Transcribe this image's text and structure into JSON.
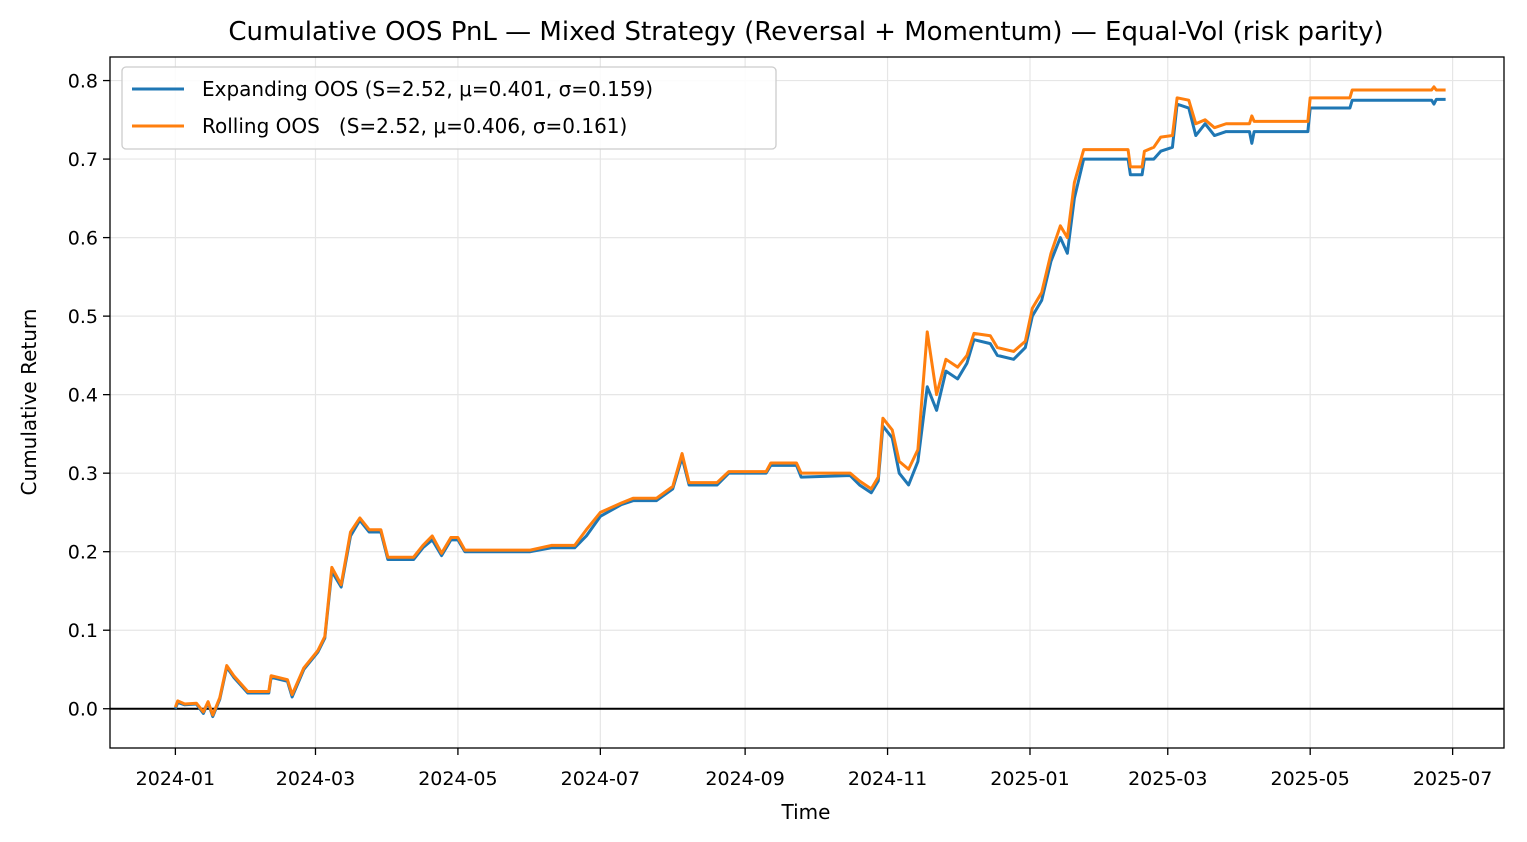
{
  "chart_data": {
    "type": "line",
    "title": "Cumulative OOS PnL — Mixed Strategy (Reversal + Momentum) — Equal-Vol (risk parity)",
    "xlabel": "Time",
    "ylabel": "Cumulative Return",
    "xlim": [
      "2023-12-04",
      "2025-07-23"
    ],
    "ylim": [
      -0.05,
      0.83
    ],
    "x_ticks": [
      "2024-01",
      "2024-03",
      "2024-05",
      "2024-07",
      "2024-09",
      "2024-11",
      "2025-01",
      "2025-03",
      "2025-05",
      "2025-07"
    ],
    "y_ticks": [
      "0.0",
      "0.1",
      "0.2",
      "0.3",
      "0.4",
      "0.5",
      "0.6",
      "0.7",
      "0.8"
    ],
    "y_tick_values": [
      0.0,
      0.1,
      0.2,
      0.3,
      0.4,
      0.5,
      0.6,
      0.7,
      0.8
    ],
    "grid": true,
    "zero_line": true,
    "legend_position": "top-left",
    "series": [
      {
        "name": "Expanding OOS (S=2.52, μ=0.401, σ=0.159)",
        "color": "#1f77b4",
        "points": [
          [
            "2024-01-01",
            0.0
          ],
          [
            "2024-01-02",
            0.008
          ],
          [
            "2024-01-05",
            0.005
          ],
          [
            "2024-01-10",
            0.006
          ],
          [
            "2024-01-13",
            -0.006
          ],
          [
            "2024-01-15",
            0.008
          ],
          [
            "2024-01-17",
            -0.01
          ],
          [
            "2024-01-20",
            0.012
          ],
          [
            "2024-01-23",
            0.053
          ],
          [
            "2024-01-26",
            0.04
          ],
          [
            "2024-01-29",
            0.03
          ],
          [
            "2024-02-01",
            0.02
          ],
          [
            "2024-02-10",
            0.02
          ],
          [
            "2024-02-11",
            0.04
          ],
          [
            "2024-02-18",
            0.035
          ],
          [
            "2024-02-20",
            0.015
          ],
          [
            "2024-02-25",
            0.05
          ],
          [
            "2024-03-02",
            0.072
          ],
          [
            "2024-03-05",
            0.09
          ],
          [
            "2024-03-08",
            0.175
          ],
          [
            "2024-03-12",
            0.155
          ],
          [
            "2024-03-16",
            0.22
          ],
          [
            "2024-03-20",
            0.24
          ],
          [
            "2024-03-24",
            0.225
          ],
          [
            "2024-03-29",
            0.225
          ],
          [
            "2024-04-01",
            0.19
          ],
          [
            "2024-04-12",
            0.19
          ],
          [
            "2024-04-16",
            0.205
          ],
          [
            "2024-04-20",
            0.215
          ],
          [
            "2024-04-24",
            0.195
          ],
          [
            "2024-04-28",
            0.215
          ],
          [
            "2024-05-01",
            0.215
          ],
          [
            "2024-05-04",
            0.2
          ],
          [
            "2024-05-20",
            0.2
          ],
          [
            "2024-06-01",
            0.2
          ],
          [
            "2024-06-10",
            0.205
          ],
          [
            "2024-06-20",
            0.205
          ],
          [
            "2024-06-25",
            0.22
          ],
          [
            "2024-07-01",
            0.245
          ],
          [
            "2024-07-10",
            0.26
          ],
          [
            "2024-07-15",
            0.265
          ],
          [
            "2024-07-25",
            0.265
          ],
          [
            "2024-08-01",
            0.28
          ],
          [
            "2024-08-05",
            0.32
          ],
          [
            "2024-08-08",
            0.285
          ],
          [
            "2024-08-20",
            0.285
          ],
          [
            "2024-08-25",
            0.3
          ],
          [
            "2024-09-10",
            0.3
          ],
          [
            "2024-09-12",
            0.31
          ],
          [
            "2024-09-23",
            0.31
          ],
          [
            "2024-09-25",
            0.295
          ],
          [
            "2024-10-16",
            0.297
          ],
          [
            "2024-10-20",
            0.285
          ],
          [
            "2024-10-25",
            0.275
          ],
          [
            "2024-10-28",
            0.29
          ],
          [
            "2024-10-30",
            0.36
          ],
          [
            "2024-11-03",
            0.345
          ],
          [
            "2024-11-06",
            0.3
          ],
          [
            "2024-11-10",
            0.285
          ],
          [
            "2024-11-14",
            0.315
          ],
          [
            "2024-11-18",
            0.41
          ],
          [
            "2024-11-22",
            0.38
          ],
          [
            "2024-11-26",
            0.43
          ],
          [
            "2024-12-01",
            0.42
          ],
          [
            "2024-12-05",
            0.44
          ],
          [
            "2024-12-08",
            0.47
          ],
          [
            "2024-12-15",
            0.465
          ],
          [
            "2024-12-18",
            0.45
          ],
          [
            "2024-12-25",
            0.445
          ],
          [
            "2024-12-30",
            0.46
          ],
          [
            "2025-01-02",
            0.5
          ],
          [
            "2025-01-06",
            0.52
          ],
          [
            "2025-01-10",
            0.57
          ],
          [
            "2025-01-14",
            0.6
          ],
          [
            "2025-01-17",
            0.58
          ],
          [
            "2025-01-20",
            0.65
          ],
          [
            "2025-01-24",
            0.7
          ],
          [
            "2025-02-12",
            0.7
          ],
          [
            "2025-02-13",
            0.68
          ],
          [
            "2025-02-18",
            0.68
          ],
          [
            "2025-02-19",
            0.7
          ],
          [
            "2025-02-23",
            0.7
          ],
          [
            "2025-02-26",
            0.71
          ],
          [
            "2025-03-03",
            0.715
          ],
          [
            "2025-03-05",
            0.77
          ],
          [
            "2025-03-10",
            0.765
          ],
          [
            "2025-03-13",
            0.73
          ],
          [
            "2025-03-17",
            0.745
          ],
          [
            "2025-03-21",
            0.73
          ],
          [
            "2025-03-26",
            0.735
          ],
          [
            "2025-04-05",
            0.735
          ],
          [
            "2025-04-06",
            0.72
          ],
          [
            "2025-04-07",
            0.735
          ],
          [
            "2025-04-30",
            0.735
          ],
          [
            "2025-05-01",
            0.765
          ],
          [
            "2025-05-18",
            0.765
          ],
          [
            "2025-05-19",
            0.775
          ],
          [
            "2025-06-22",
            0.775
          ],
          [
            "2025-06-23",
            0.77
          ],
          [
            "2025-06-24",
            0.776
          ],
          [
            "2025-06-28",
            0.776
          ]
        ]
      },
      {
        "name": "Rolling OOS   (S=2.52, μ=0.406, σ=0.161)",
        "color": "#ff7f0e",
        "points": [
          [
            "2024-01-01",
            0.002
          ],
          [
            "2024-01-02",
            0.01
          ],
          [
            "2024-01-05",
            0.006
          ],
          [
            "2024-01-10",
            0.007
          ],
          [
            "2024-01-13",
            -0.004
          ],
          [
            "2024-01-15",
            0.009
          ],
          [
            "2024-01-17",
            -0.008
          ],
          [
            "2024-01-20",
            0.014
          ],
          [
            "2024-01-23",
            0.055
          ],
          [
            "2024-01-26",
            0.042
          ],
          [
            "2024-01-29",
            0.032
          ],
          [
            "2024-02-01",
            0.022
          ],
          [
            "2024-02-10",
            0.022
          ],
          [
            "2024-02-11",
            0.042
          ],
          [
            "2024-02-18",
            0.037
          ],
          [
            "2024-02-20",
            0.018
          ],
          [
            "2024-02-25",
            0.052
          ],
          [
            "2024-03-02",
            0.074
          ],
          [
            "2024-03-05",
            0.092
          ],
          [
            "2024-03-08",
            0.18
          ],
          [
            "2024-03-12",
            0.158
          ],
          [
            "2024-03-16",
            0.225
          ],
          [
            "2024-03-20",
            0.243
          ],
          [
            "2024-03-24",
            0.228
          ],
          [
            "2024-03-29",
            0.228
          ],
          [
            "2024-04-01",
            0.193
          ],
          [
            "2024-04-12",
            0.193
          ],
          [
            "2024-04-16",
            0.208
          ],
          [
            "2024-04-20",
            0.22
          ],
          [
            "2024-04-24",
            0.198
          ],
          [
            "2024-04-28",
            0.218
          ],
          [
            "2024-05-01",
            0.218
          ],
          [
            "2024-05-04",
            0.202
          ],
          [
            "2024-05-20",
            0.202
          ],
          [
            "2024-06-01",
            0.202
          ],
          [
            "2024-06-10",
            0.208
          ],
          [
            "2024-06-20",
            0.208
          ],
          [
            "2024-06-25",
            0.228
          ],
          [
            "2024-07-01",
            0.25
          ],
          [
            "2024-07-10",
            0.262
          ],
          [
            "2024-07-15",
            0.268
          ],
          [
            "2024-07-25",
            0.268
          ],
          [
            "2024-08-01",
            0.283
          ],
          [
            "2024-08-05",
            0.325
          ],
          [
            "2024-08-08",
            0.288
          ],
          [
            "2024-08-20",
            0.288
          ],
          [
            "2024-08-25",
            0.302
          ],
          [
            "2024-09-10",
            0.302
          ],
          [
            "2024-09-12",
            0.313
          ],
          [
            "2024-09-23",
            0.313
          ],
          [
            "2024-09-25",
            0.3
          ],
          [
            "2024-10-16",
            0.3
          ],
          [
            "2024-10-20",
            0.29
          ],
          [
            "2024-10-25",
            0.28
          ],
          [
            "2024-10-28",
            0.295
          ],
          [
            "2024-10-30",
            0.37
          ],
          [
            "2024-11-03",
            0.355
          ],
          [
            "2024-11-06",
            0.315
          ],
          [
            "2024-11-10",
            0.305
          ],
          [
            "2024-11-14",
            0.33
          ],
          [
            "2024-11-18",
            0.48
          ],
          [
            "2024-11-22",
            0.4
          ],
          [
            "2024-11-26",
            0.445
          ],
          [
            "2024-12-01",
            0.435
          ],
          [
            "2024-12-05",
            0.45
          ],
          [
            "2024-12-08",
            0.478
          ],
          [
            "2024-12-15",
            0.475
          ],
          [
            "2024-12-18",
            0.46
          ],
          [
            "2024-12-25",
            0.455
          ],
          [
            "2024-12-30",
            0.468
          ],
          [
            "2025-01-02",
            0.51
          ],
          [
            "2025-01-06",
            0.53
          ],
          [
            "2025-01-10",
            0.58
          ],
          [
            "2025-01-14",
            0.615
          ],
          [
            "2025-01-17",
            0.6
          ],
          [
            "2025-01-20",
            0.67
          ],
          [
            "2025-01-24",
            0.712
          ],
          [
            "2025-02-12",
            0.712
          ],
          [
            "2025-02-13",
            0.69
          ],
          [
            "2025-02-18",
            0.69
          ],
          [
            "2025-02-19",
            0.71
          ],
          [
            "2025-02-23",
            0.715
          ],
          [
            "2025-02-26",
            0.728
          ],
          [
            "2025-03-03",
            0.73
          ],
          [
            "2025-03-05",
            0.778
          ],
          [
            "2025-03-10",
            0.775
          ],
          [
            "2025-03-13",
            0.745
          ],
          [
            "2025-03-17",
            0.75
          ],
          [
            "2025-03-21",
            0.74
          ],
          [
            "2025-03-26",
            0.745
          ],
          [
            "2025-04-05",
            0.745
          ],
          [
            "2025-04-06",
            0.755
          ],
          [
            "2025-04-07",
            0.748
          ],
          [
            "2025-04-30",
            0.748
          ],
          [
            "2025-05-01",
            0.778
          ],
          [
            "2025-05-18",
            0.778
          ],
          [
            "2025-05-19",
            0.788
          ],
          [
            "2025-06-22",
            0.788
          ],
          [
            "2025-06-23",
            0.792
          ],
          [
            "2025-06-24",
            0.788
          ],
          [
            "2025-06-28",
            0.788
          ]
        ]
      }
    ]
  }
}
